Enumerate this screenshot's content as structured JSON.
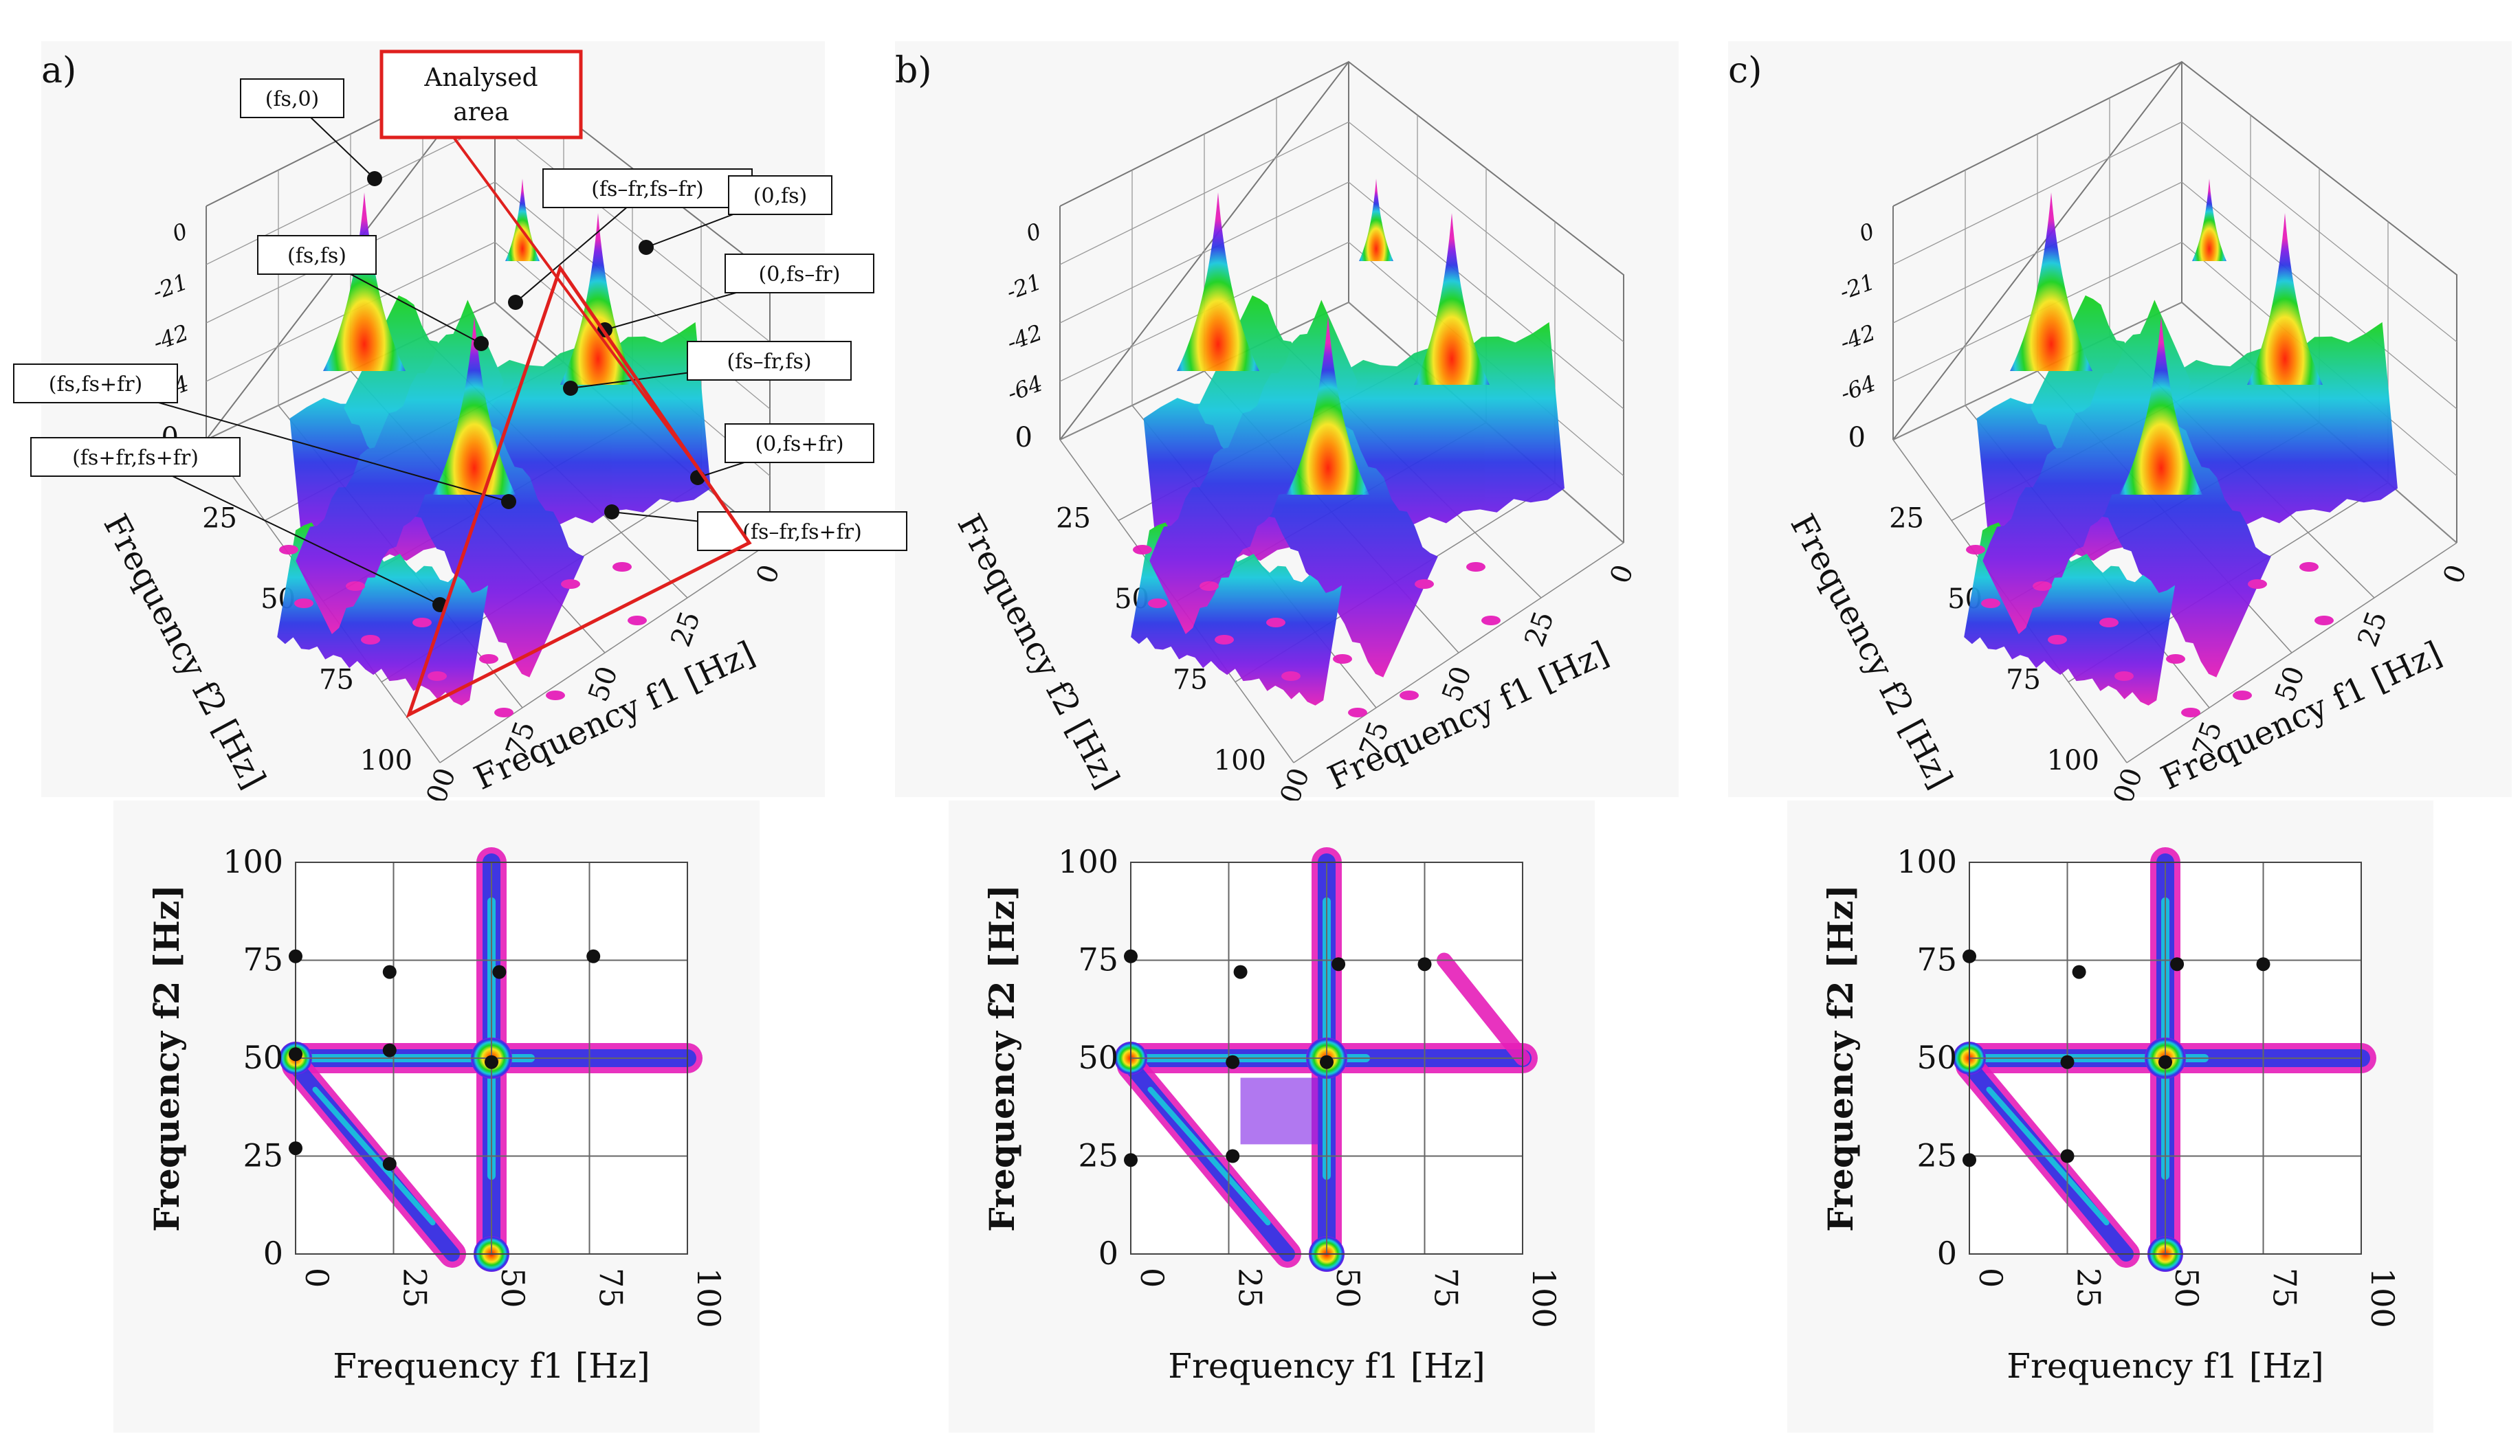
{
  "figure": {
    "panel_letters": [
      "a)",
      "b)",
      "c)"
    ],
    "axis_3d": {
      "z_ticks": [
        "0",
        "-21",
        "-42",
        "-64"
      ],
      "f1_ticks": [
        "0",
        "25",
        "50",
        "75",
        "100"
      ],
      "f2_ticks": [
        "0",
        "25",
        "50",
        "75",
        "100"
      ],
      "f1_label": "Frequency f1 [Hz]",
      "f2_label": "Frequency f2 [Hz]"
    },
    "annotations_a": {
      "analysed_area": [
        "Analysed",
        "area"
      ],
      "labels": [
        "(fs,0)",
        "(fs,fs)",
        "(fs,fs+fr)",
        "(fs+fr,fs+fr)",
        "(fs–fr,fs–fr)",
        "(0,fs)",
        "(0,fs–fr)",
        "(fs–fr,fs)",
        "(0,fs+fr)",
        "(fs–fr,fs+fr)"
      ]
    },
    "colors": {
      "peak_red": "#ff1a00",
      "orange": "#ff8c00",
      "yellow": "#f5e61e",
      "green": "#19d21e",
      "cyan": "#19c8dc",
      "blue": "#2d37e6",
      "violet": "#7d1ee6",
      "magenta": "#e61eb9",
      "annotation_red": "#e0201e"
    }
  },
  "chart_data": [
    {
      "type": "heatmap",
      "panel": "a)",
      "title": "",
      "xlabel": "Frequency f1 [Hz]",
      "ylabel": "Frequency f2 [Hz]",
      "xlim": [
        0,
        100
      ],
      "ylim": [
        0,
        100
      ],
      "xticks": [
        0,
        25,
        50,
        75,
        100
      ],
      "yticks": [
        0,
        25,
        50,
        75,
        100
      ],
      "grid": true,
      "marked_points": [
        [
          0,
          76
        ],
        [
          24,
          72
        ],
        [
          52,
          72
        ],
        [
          76,
          76
        ],
        [
          0,
          51
        ],
        [
          24,
          52
        ],
        [
          50,
          49
        ],
        [
          0,
          27
        ],
        [
          24,
          23
        ]
      ]
    },
    {
      "type": "heatmap",
      "panel": "b)",
      "title": "",
      "xlabel": "Frequency f1 [Hz]",
      "ylabel": "Frequency f2 [Hz]",
      "xlim": [
        0,
        100
      ],
      "ylim": [
        0,
        100
      ],
      "xticks": [
        0,
        25,
        50,
        75,
        100
      ],
      "yticks": [
        0,
        25,
        50,
        75,
        100
      ],
      "grid": true,
      "marked_points": [
        [
          0,
          76
        ],
        [
          28,
          72
        ],
        [
          53,
          74
        ],
        [
          75,
          74
        ],
        [
          26,
          49
        ],
        [
          50,
          49
        ],
        [
          26,
          25
        ],
        [
          0,
          24
        ]
      ]
    },
    {
      "type": "heatmap",
      "panel": "c)",
      "title": "",
      "xlabel": "Frequency f1 [Hz]",
      "ylabel": "Frequency f2 [Hz]",
      "xlim": [
        0,
        100
      ],
      "ylim": [
        0,
        100
      ],
      "xticks": [
        0,
        25,
        50,
        75,
        100
      ],
      "yticks": [
        0,
        25,
        50,
        75,
        100
      ],
      "grid": true,
      "marked_points": [
        [
          0,
          76
        ],
        [
          28,
          72
        ],
        [
          53,
          74
        ],
        [
          75,
          74
        ],
        [
          25,
          49
        ],
        [
          50,
          49
        ],
        [
          25,
          25
        ],
        [
          0,
          24
        ]
      ]
    }
  ]
}
